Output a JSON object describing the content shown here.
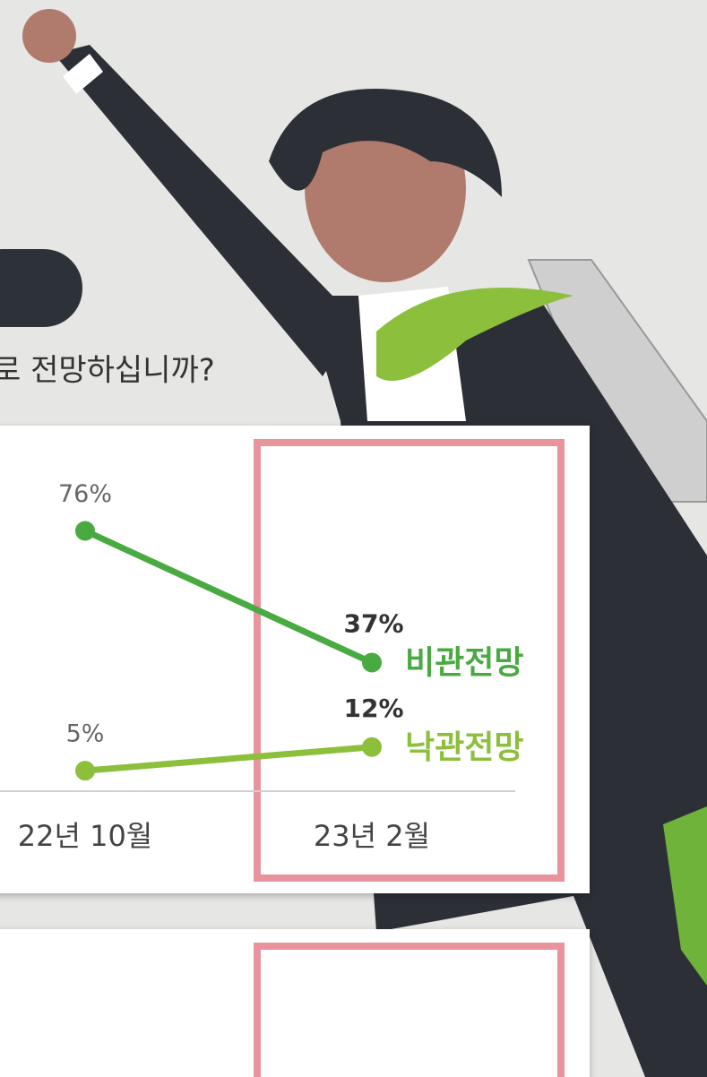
{
  "question": "로 전망하십니까?",
  "chart_data": {
    "type": "line",
    "categories": [
      "22년 10월",
      "23년 2월"
    ],
    "series": [
      {
        "name": "비관전망",
        "color": "#4aaa42",
        "values": [
          76,
          37
        ],
        "value_labels": [
          "76%",
          "37%"
        ]
      },
      {
        "name": "낙관전망",
        "color": "#8cbf3c",
        "values": [
          5,
          12
        ],
        "value_labels": [
          "5%",
          "12%"
        ]
      }
    ],
    "ylim": [
      0,
      100
    ]
  }
}
